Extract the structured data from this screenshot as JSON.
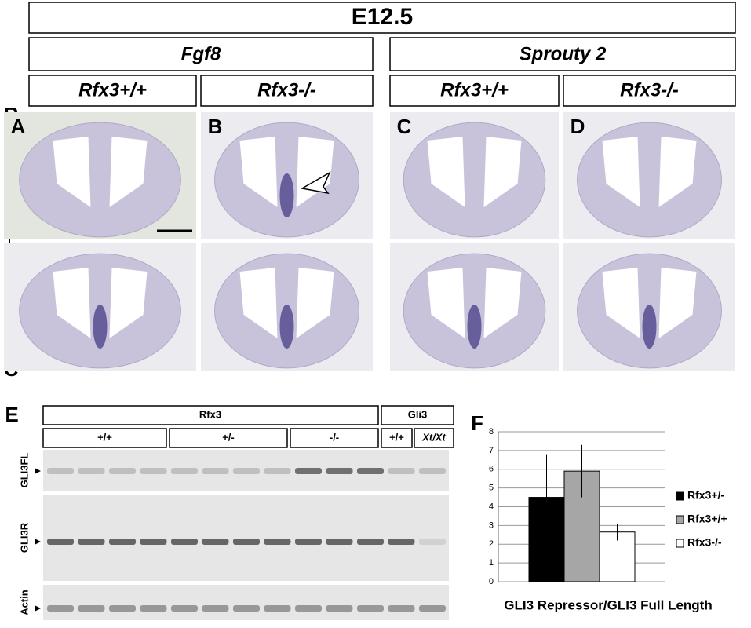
{
  "figure": {
    "title": "E12.5",
    "groups": [
      "Fgf8",
      "Sprouty 2"
    ],
    "genotypes": [
      "Rfx3+/+",
      "Rfx3-/-",
      "Rfx3+/+",
      "Rfx3-/-"
    ],
    "axis": {
      "rostral": "R",
      "caudal": "C"
    },
    "panels": [
      "A",
      "B",
      "C",
      "D",
      "E",
      "F"
    ],
    "blot": {
      "genes": [
        "Rfx3",
        "Gli3"
      ],
      "genotypes": [
        "+/+",
        "+/-",
        "-/-",
        "+/+",
        "Xt/Xt"
      ],
      "bands": [
        "GLI3FL",
        "GLI3R",
        "Actin"
      ]
    }
  },
  "chart_data": {
    "type": "bar",
    "xlabel": "GLI3 Repressor/GLI3 Full Length",
    "categories": [
      null
    ],
    "series": [
      {
        "name": "Rfx3+/-",
        "color": "#000000",
        "values": [
          4.5
        ],
        "errors": [
          2.3
        ]
      },
      {
        "name": "Rfx3+/+",
        "color": "#a6a6a6",
        "values": [
          5.9
        ],
        "errors": [
          1.4
        ]
      },
      {
        "name": "Rfx3-/-",
        "color": "#ffffff",
        "values": [
          2.65
        ],
        "errors": [
          0.45
        ]
      }
    ],
    "ylim": [
      0,
      8
    ],
    "yticks": [
      0,
      1,
      2,
      3,
      4,
      5,
      6,
      7,
      8
    ],
    "grid": true,
    "legend": "right"
  }
}
